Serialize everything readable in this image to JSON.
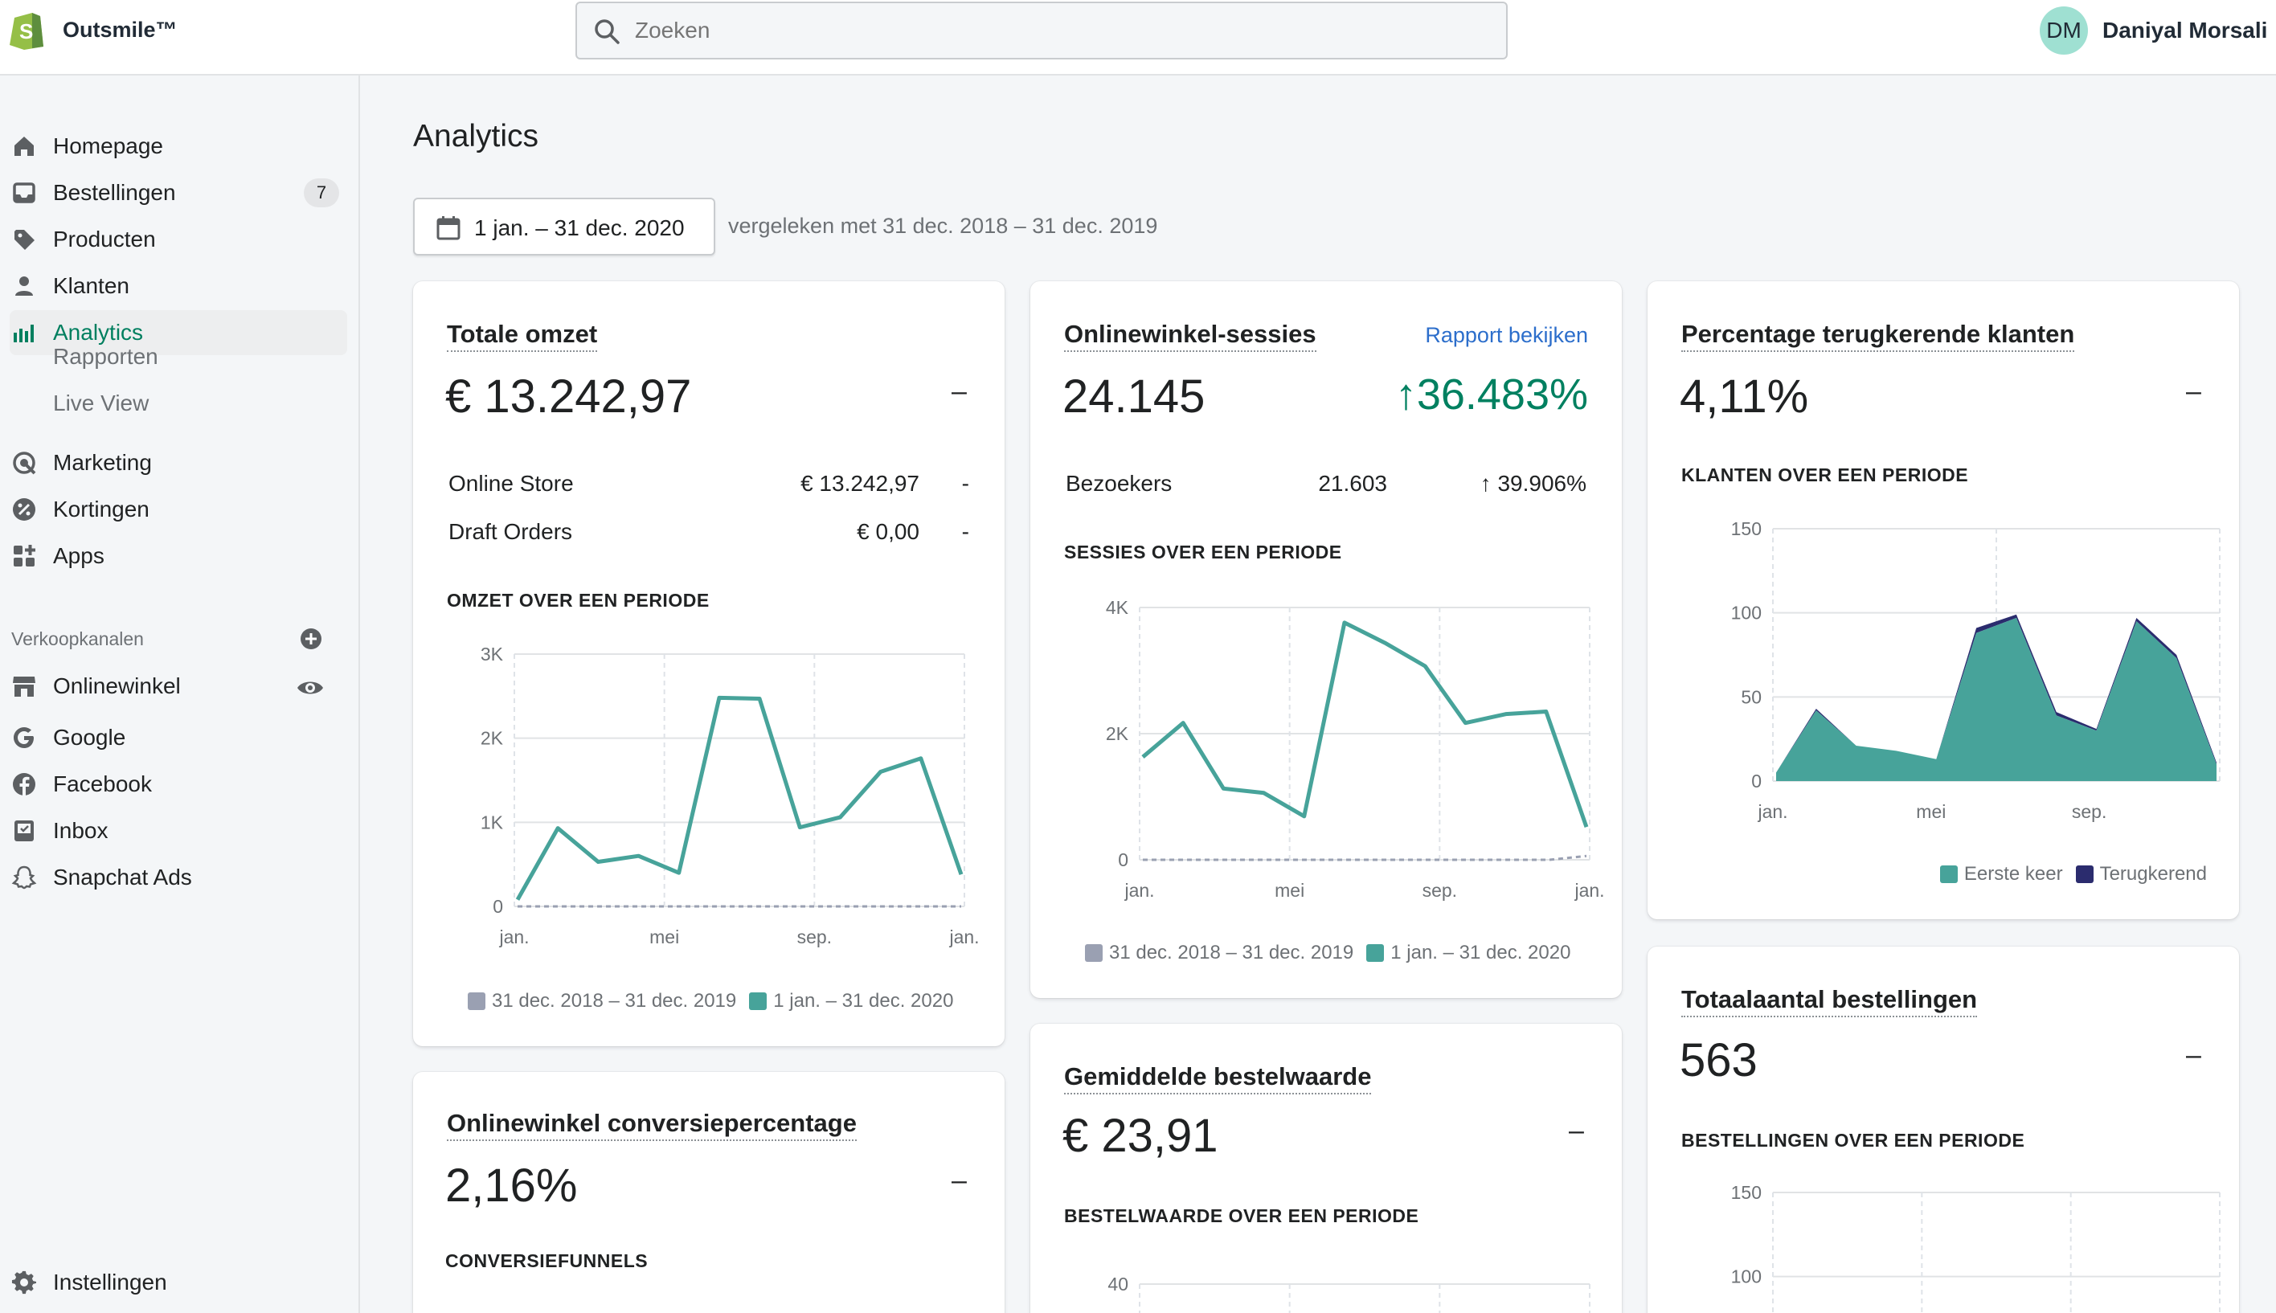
{
  "topbar": {
    "store_name": "Outsmile™",
    "search_placeholder": "Zoeken",
    "user_initials": "DM",
    "user_name": "Daniyal Morsali"
  },
  "sidebar": {
    "items": [
      {
        "label": "Homepage",
        "icon": "home-icon"
      },
      {
        "label": "Bestellingen",
        "icon": "orders-icon",
        "badge": "7"
      },
      {
        "label": "Producten",
        "icon": "tag-icon"
      },
      {
        "label": "Klanten",
        "icon": "person-icon"
      },
      {
        "label": "Analytics",
        "icon": "bar-chart-icon",
        "active": true
      }
    ],
    "sub_items": [
      "Rapporten",
      "Live View"
    ],
    "items2": [
      {
        "label": "Marketing",
        "icon": "target-icon"
      },
      {
        "label": "Kortingen",
        "icon": "discount-icon"
      },
      {
        "label": "Apps",
        "icon": "apps-icon"
      }
    ],
    "sales_channels_label": "Verkoopkanalen",
    "channels": [
      {
        "label": "Onlinewinkel",
        "icon": "store-icon"
      },
      {
        "label": "Google",
        "icon": "google-icon"
      },
      {
        "label": "Facebook",
        "icon": "facebook-icon"
      },
      {
        "label": "Inbox",
        "icon": "inbox-icon"
      },
      {
        "label": "Snapchat Ads",
        "icon": "snapchat-icon"
      }
    ],
    "settings_label": "Instellingen"
  },
  "main": {
    "title": "Analytics",
    "date_range": "1 jan. – 31 dec. 2020",
    "compare_text": "vergeleken met 31 dec. 2018 – 31 dec. 2019"
  },
  "colors": {
    "accent": "#47a39a",
    "compare": "#9aa0b2",
    "returning": "#2b2c6e",
    "brand_green": "#007f5f",
    "link": "#2c6ecb"
  },
  "cards": {
    "revenue": {
      "title": "Totale omzet",
      "value": "€ 13.242,97",
      "change": "–",
      "rows": [
        {
          "label": "Online Store",
          "value": "€ 13.242,97",
          "change": "-"
        },
        {
          "label": "Draft Orders",
          "value": "€ 0,00",
          "change": "-"
        }
      ],
      "chart_heading": "OMZET OVER EEN PERIODE"
    },
    "sessions": {
      "title": "Onlinewinkel-sessies",
      "link": "Rapport bekijken",
      "value": "24.145",
      "change": "↑36.483%",
      "rows": [
        {
          "label": "Bezoekers",
          "value": "21.603",
          "change": "↑ 39.906%"
        }
      ],
      "chart_heading": "SESSIES OVER EEN PERIODE"
    },
    "returning": {
      "title": "Percentage terugkerende klanten",
      "value": "4,11%",
      "change": "–",
      "chart_heading": "KLANTEN OVER EEN PERIODE"
    },
    "conversion": {
      "title": "Onlinewinkel conversiepercentage",
      "value": "2,16%",
      "change": "–",
      "chart_heading": "CONVERSIEFUNNELS"
    },
    "aov": {
      "title": "Gemiddelde bestelwaarde",
      "value": "€ 23,91",
      "change": "–",
      "chart_heading": "BESTELWAARDE OVER EEN PERIODE"
    },
    "orders": {
      "title": "Totaalaantal bestellingen",
      "value": "563",
      "change": "–",
      "chart_heading": "BESTELLINGEN OVER EEN PERIODE"
    }
  },
  "chart_data": [
    {
      "type": "line",
      "x_ticks": [
        "jan.",
        "mei",
        "sep.",
        "jan."
      ],
      "y_ticks": [
        "0",
        "1K",
        "2K",
        "3K"
      ],
      "ylim": [
        0,
        3000
      ],
      "series": [
        {
          "name": "31 dec. 2018 – 31 dec. 2019",
          "values": [
            0,
            0,
            0,
            0,
            0,
            0,
            0,
            0,
            0,
            0,
            0,
            0,
            0
          ]
        },
        {
          "name": "1 jan. – 31 dec. 2020",
          "values": [
            80,
            930,
            530,
            600,
            400,
            2480,
            2470,
            940,
            1060,
            1600,
            1760,
            380
          ]
        }
      ]
    },
    {
      "type": "line",
      "x_ticks": [
        "jan.",
        "mei",
        "sep.",
        "jan."
      ],
      "y_ticks": [
        "0",
        "2K",
        "4K"
      ],
      "ylim": [
        0,
        4000
      ],
      "series": [
        {
          "name": "31 dec. 2018 – 31 dec. 2019",
          "values": [
            0,
            0,
            0,
            0,
            0,
            0,
            0,
            0,
            0,
            0,
            0,
            0,
            60
          ]
        },
        {
          "name": "1 jan. – 31 dec. 2020",
          "values": [
            1630,
            2170,
            1130,
            1060,
            690,
            3760,
            3440,
            3070,
            2170,
            2310,
            2350,
            520
          ]
        }
      ]
    },
    {
      "type": "area",
      "x_ticks": [
        "jan.",
        "mei",
        "sep."
      ],
      "y_ticks": [
        "0",
        "50",
        "100",
        "150"
      ],
      "ylim": [
        0,
        150
      ],
      "series": [
        {
          "name": "Eerste keer",
          "values": [
            5,
            42,
            21,
            18,
            13,
            88,
            97,
            39,
            30,
            95,
            73,
            10
          ]
        },
        {
          "name": "Terugkerend",
          "values": [
            0,
            1,
            0,
            0,
            0,
            3,
            2,
            2,
            1,
            2,
            2,
            1
          ]
        }
      ]
    },
    {
      "type": "line",
      "x_ticks": [],
      "y_ticks": [
        "40"
      ],
      "ylim": [
        0,
        40
      ],
      "series": [
        {
          "name": "",
          "values": []
        }
      ]
    },
    {
      "type": "line",
      "x_ticks": [],
      "y_ticks": [
        "100",
        "150"
      ],
      "ylim": [
        0,
        150
      ],
      "series": [
        {
          "name": "",
          "values": []
        }
      ]
    }
  ]
}
